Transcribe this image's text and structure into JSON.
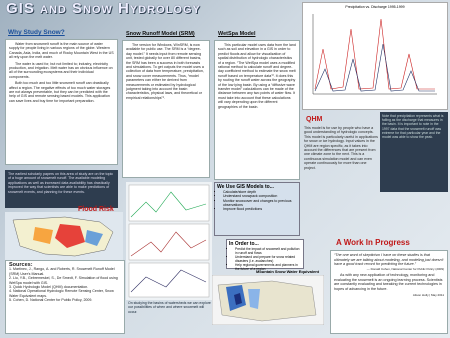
{
  "header": {
    "title": "GIS and Snow Hydrology"
  },
  "why": {
    "heading": "Why Study Snow?",
    "paragraphs": [
      "Water from snowmelt runoff is the main source of water supply for people living in various regions of the globe. Western Canada, Asia, India, and much of Rocky Mountain West in the US all rely upon the melt water.",
      "The water is used for, but not limited to; industry, electricity production, and irrigation. Melt water has an obvious influence on all of the surrounding ecosystems and their individual components.",
      "Both too much and too little snowmelt runoff can drastically affect a region. The negative effects of too much water storages are not always preventable, but they can be predicted with the help of GIS and remote sensing based models. This application can save lives and buy time for important preparation."
    ]
  },
  "dark": {
    "text": "The earliest scholarly papers on this area of study are on the topic of a huge amount of snowmelt runoff. The available modeling applications as well as increased data availability has drastically improved the way that scientists are able to make predictions of snowmelt events, and planning for these events."
  },
  "flood": {
    "label": "Flood Risk"
  },
  "srm": {
    "heading": "Snow Runoff Model (SRM)",
    "text": "The version for Windows, WinSRM, is now available for public use. The SRM is a “degree-day model.” It needs input from remote sensing unit, tested globally for over 80 different basins, the SRM has been a success in both forecasts and simulations. To get outputs the model uses a collection of data from temperature, precipitation, and snow cover measurements. Thus, “model parameters can either be derived from measurements or estimated by hydrological judgment taking into account the basin characteristics, physical laws, and theoretical or empirical relationships”¹."
  },
  "wetspa": {
    "heading": "WetSpa Model",
    "text": "This particular model uses data from the land such as soil and elevation in a GIS in order to predict floods and allow for visualization of spatial distribution of hydrologic characteristics of a region. “The WetSpa model uses a modified rational method to calculate runoff and degree-day coefficient method to estimate the snow melt runoff based on temperature data”². It does this by routing the runoff water across the geography of the low lying basin. By using a “diffusive wave transfer model” calculations can be made of the distance between any two points of water flow. It must take into account that these calculations will vary depending upon the different geographies of the basin."
  },
  "chart": {
    "title": "Precipitation vs. Discharge 1995-1999"
  },
  "note": {
    "text": "Note that precipitation represents what is falling as the discharge that measures in the basin. It is important to note in the 1997 data that the snowmelt runoff was extreme for that particular year and the model was able to show the peak."
  },
  "qhm": {
    "heading": "QHM",
    "text": "This model is for use by people who have a good understanding of hydrologic concepts. This model is particularly useful in applications for snow or ice hydrology. Input values in the QHM are region specific, as it takes into account the differences that are present from one climate zone to the next. This is a continuous simulation model and can even operate continuously for more than one project."
  },
  "gis": {
    "heading": "We Use GIS Models to...",
    "items": [
      "Calculate/store depth",
      "Understand snowpack composition",
      "Monitor snowcover and changes to previous observations",
      "Improve flood predictions"
    ]
  },
  "order": {
    "heading": "In Order to...",
    "items": [
      "Predict the impact of snowmelt and pollution in runoff and flows",
      "Understand and prepare for snow related disasters (i.e. avalanches)",
      "Help regional governments and planners in the future of a region"
    ]
  },
  "swe": {
    "title": "Mountain Snow Water Equivalent"
  },
  "basins": {
    "caption": "On studying the basins of watersheds we can explore our possibilities of when and where snowmelt will occur."
  },
  "wip": {
    "heading": "A Work In Progress",
    "quote": "“The one word of skepticism I have on these studies is that ultimately we are talking about modeling, and modeling just doesn't have a good track record for predicting the future.”",
    "quote_source": "— Donald Cohen, National Center for Public Policy (2009)",
    "text": "As with any new application of technology, monitoring and evaluating the snowmelt is an ongoing learning process. Scientists are constantly evaluating and tweaking the current technologies in hopes of advancing in the future.",
    "credit": "Alison Holly | May 2011"
  },
  "sources": {
    "heading": "Sources:",
    "items": [
      "1. Martinec, J., Rango, A. and Roberts, R. Snowmelt Runoff Model (SRM) User's Manual.",
      "2. Liu, Y.B., Gebremeskel, S., De Smedt, F. Simulation of flood using WetSpa model with GIS.",
      "3. Quick Hydrologic Model (QHM) documentation.",
      "4. National Operational Hydrologic Remote Sensing Center, Snow Water Equivalent maps.",
      "5. Cohen, D. National Center for Public Policy, 2009."
    ]
  }
}
